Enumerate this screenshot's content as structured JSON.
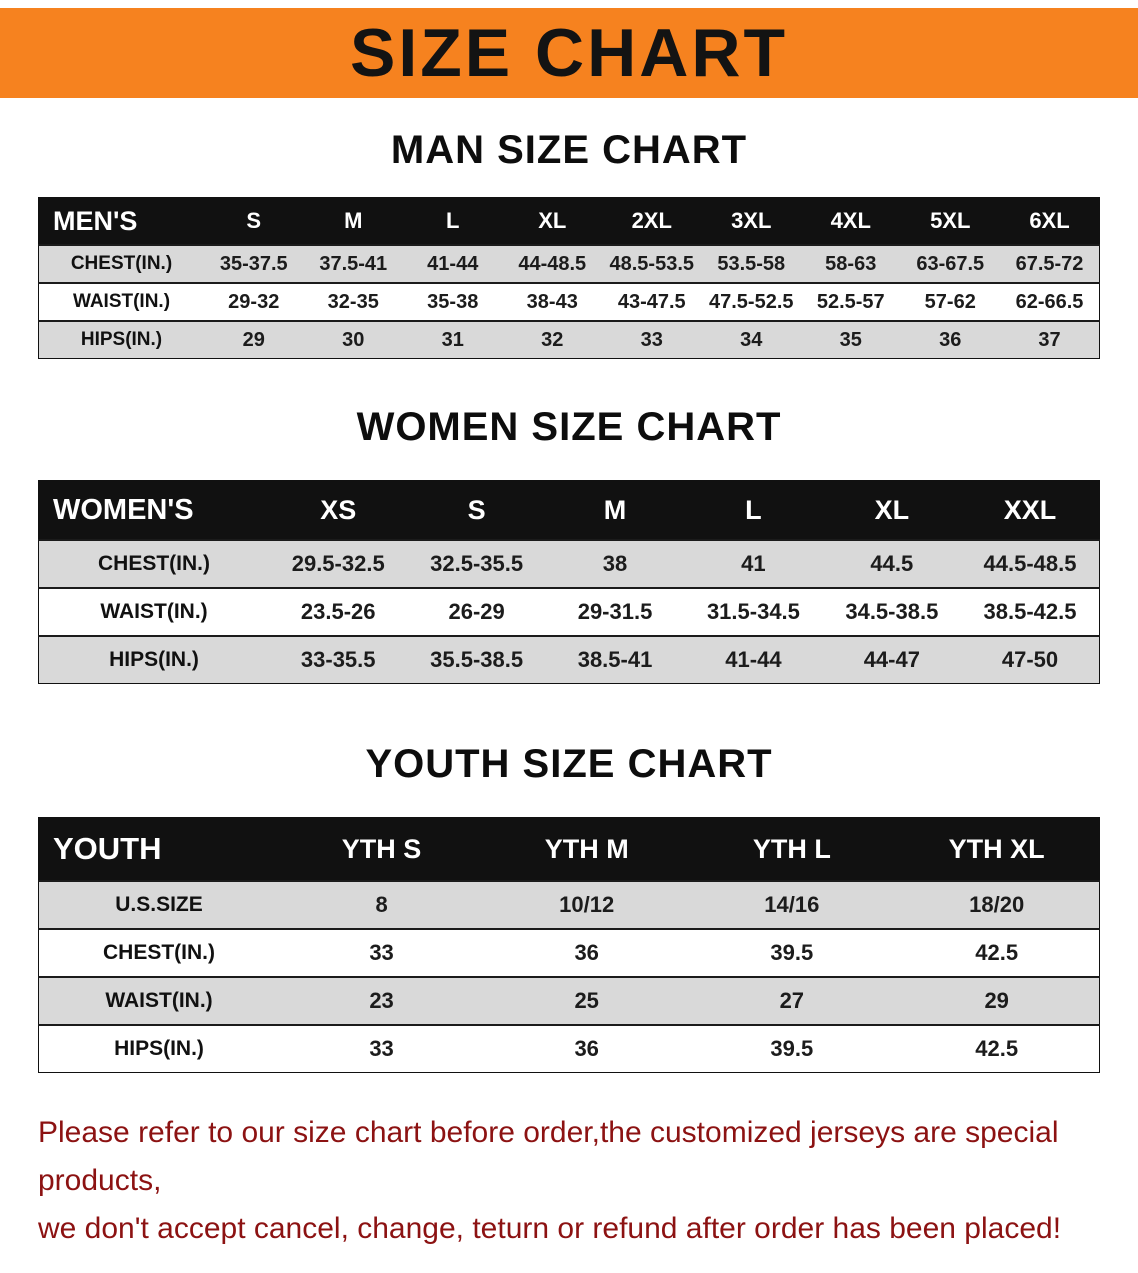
{
  "banner": {
    "title": "SIZE CHART"
  },
  "colors": {
    "banner_orange": "#f6821f",
    "header_black": "#111111",
    "stripe_gray": "#d9d9d9",
    "note_red": "#8c1212"
  },
  "sections": [
    {
      "heading": "MAN SIZE CHART",
      "table": {
        "header": [
          "MEN'S",
          "S",
          "M",
          "L",
          "XL",
          "2XL",
          "3XL",
          "4XL",
          "5XL",
          "6XL"
        ],
        "rows": [
          [
            "CHEST(IN.)",
            "35-37.5",
            "37.5-41",
            "41-44",
            "44-48.5",
            "48.5-53.5",
            "53.5-58",
            "58-63",
            "63-67.5",
            "67.5-72"
          ],
          [
            "WAIST(IN.)",
            "29-32",
            "32-35",
            "35-38",
            "38-43",
            "43-47.5",
            "47.5-52.5",
            "52.5-57",
            "57-62",
            "62-66.5"
          ],
          [
            "HIPS(IN.)",
            "29",
            "30",
            "31",
            "32",
            "33",
            "34",
            "35",
            "36",
            "37"
          ]
        ]
      }
    },
    {
      "heading": "WOMEN SIZE CHART",
      "table": {
        "header": [
          "WOMEN'S",
          "XS",
          "S",
          "M",
          "L",
          "XL",
          "XXL"
        ],
        "rows": [
          [
            "CHEST(IN.)",
            "29.5-32.5",
            "32.5-35.5",
            "38",
            "41",
            "44.5",
            "44.5-48.5"
          ],
          [
            "WAIST(IN.)",
            "23.5-26",
            "26-29",
            "29-31.5",
            "31.5-34.5",
            "34.5-38.5",
            "38.5-42.5"
          ],
          [
            "HIPS(IN.)",
            "33-35.5",
            "35.5-38.5",
            "38.5-41",
            "41-44",
            "44-47",
            "47-50"
          ]
        ]
      }
    },
    {
      "heading": "YOUTH SIZE CHART",
      "table": {
        "header": [
          "YOUTH",
          "YTH S",
          "YTH M",
          "YTH L",
          "YTH XL"
        ],
        "rows": [
          [
            "U.S.SIZE",
            "8",
            "10/12",
            "14/16",
            "18/20"
          ],
          [
            "CHEST(IN.)",
            "33",
            "36",
            "39.5",
            "42.5"
          ],
          [
            "WAIST(IN.)",
            "23",
            "25",
            "27",
            "29"
          ],
          [
            "HIPS(IN.)",
            "33",
            "36",
            "39.5",
            "42.5"
          ]
        ]
      }
    }
  ],
  "footer": {
    "lines": [
      "Please refer to our size chart before order,the customized jerseys are special products,",
      "we don't accept cancel, change, teturn or refund after order has been placed!"
    ]
  }
}
